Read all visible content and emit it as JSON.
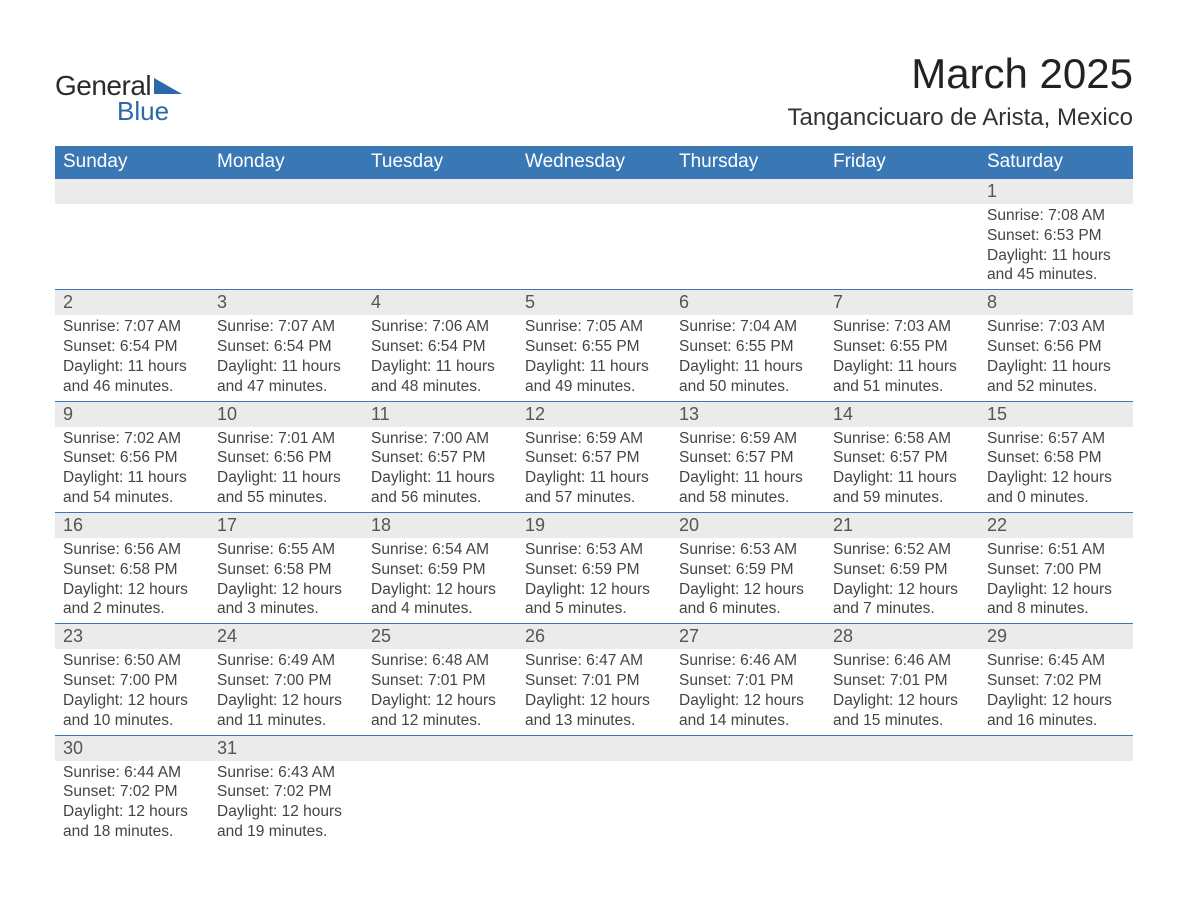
{
  "brand": {
    "name_part1": "General",
    "name_part2": "Blue",
    "text_color_dark": "#2b2b2b",
    "text_color_blue": "#2a6aa8",
    "triangle_color": "#2a6aa8"
  },
  "title": {
    "month": "March 2025",
    "location": "Tangancicuaro de Arista, Mexico",
    "month_fontsize": 42,
    "location_fontsize": 24
  },
  "colors": {
    "header_bg": "#3a78b5",
    "header_text": "#ffffff",
    "daynum_bg": "#ebebeb",
    "row_divider": "#3a78b5",
    "body_text": "#444444",
    "page_bg": "#ffffff"
  },
  "weekdays": [
    "Sunday",
    "Monday",
    "Tuesday",
    "Wednesday",
    "Thursday",
    "Friday",
    "Saturday"
  ],
  "weeks": [
    [
      null,
      null,
      null,
      null,
      null,
      null,
      {
        "n": "1",
        "sunrise": "Sunrise: 7:08 AM",
        "sunset": "Sunset: 6:53 PM",
        "day1": "Daylight: 11 hours",
        "day2": "and 45 minutes."
      }
    ],
    [
      {
        "n": "2",
        "sunrise": "Sunrise: 7:07 AM",
        "sunset": "Sunset: 6:54 PM",
        "day1": "Daylight: 11 hours",
        "day2": "and 46 minutes."
      },
      {
        "n": "3",
        "sunrise": "Sunrise: 7:07 AM",
        "sunset": "Sunset: 6:54 PM",
        "day1": "Daylight: 11 hours",
        "day2": "and 47 minutes."
      },
      {
        "n": "4",
        "sunrise": "Sunrise: 7:06 AM",
        "sunset": "Sunset: 6:54 PM",
        "day1": "Daylight: 11 hours",
        "day2": "and 48 minutes."
      },
      {
        "n": "5",
        "sunrise": "Sunrise: 7:05 AM",
        "sunset": "Sunset: 6:55 PM",
        "day1": "Daylight: 11 hours",
        "day2": "and 49 minutes."
      },
      {
        "n": "6",
        "sunrise": "Sunrise: 7:04 AM",
        "sunset": "Sunset: 6:55 PM",
        "day1": "Daylight: 11 hours",
        "day2": "and 50 minutes."
      },
      {
        "n": "7",
        "sunrise": "Sunrise: 7:03 AM",
        "sunset": "Sunset: 6:55 PM",
        "day1": "Daylight: 11 hours",
        "day2": "and 51 minutes."
      },
      {
        "n": "8",
        "sunrise": "Sunrise: 7:03 AM",
        "sunset": "Sunset: 6:56 PM",
        "day1": "Daylight: 11 hours",
        "day2": "and 52 minutes."
      }
    ],
    [
      {
        "n": "9",
        "sunrise": "Sunrise: 7:02 AM",
        "sunset": "Sunset: 6:56 PM",
        "day1": "Daylight: 11 hours",
        "day2": "and 54 minutes."
      },
      {
        "n": "10",
        "sunrise": "Sunrise: 7:01 AM",
        "sunset": "Sunset: 6:56 PM",
        "day1": "Daylight: 11 hours",
        "day2": "and 55 minutes."
      },
      {
        "n": "11",
        "sunrise": "Sunrise: 7:00 AM",
        "sunset": "Sunset: 6:57 PM",
        "day1": "Daylight: 11 hours",
        "day2": "and 56 minutes."
      },
      {
        "n": "12",
        "sunrise": "Sunrise: 6:59 AM",
        "sunset": "Sunset: 6:57 PM",
        "day1": "Daylight: 11 hours",
        "day2": "and 57 minutes."
      },
      {
        "n": "13",
        "sunrise": "Sunrise: 6:59 AM",
        "sunset": "Sunset: 6:57 PM",
        "day1": "Daylight: 11 hours",
        "day2": "and 58 minutes."
      },
      {
        "n": "14",
        "sunrise": "Sunrise: 6:58 AM",
        "sunset": "Sunset: 6:57 PM",
        "day1": "Daylight: 11 hours",
        "day2": "and 59 minutes."
      },
      {
        "n": "15",
        "sunrise": "Sunrise: 6:57 AM",
        "sunset": "Sunset: 6:58 PM",
        "day1": "Daylight: 12 hours",
        "day2": "and 0 minutes."
      }
    ],
    [
      {
        "n": "16",
        "sunrise": "Sunrise: 6:56 AM",
        "sunset": "Sunset: 6:58 PM",
        "day1": "Daylight: 12 hours",
        "day2": "and 2 minutes."
      },
      {
        "n": "17",
        "sunrise": "Sunrise: 6:55 AM",
        "sunset": "Sunset: 6:58 PM",
        "day1": "Daylight: 12 hours",
        "day2": "and 3 minutes."
      },
      {
        "n": "18",
        "sunrise": "Sunrise: 6:54 AM",
        "sunset": "Sunset: 6:59 PM",
        "day1": "Daylight: 12 hours",
        "day2": "and 4 minutes."
      },
      {
        "n": "19",
        "sunrise": "Sunrise: 6:53 AM",
        "sunset": "Sunset: 6:59 PM",
        "day1": "Daylight: 12 hours",
        "day2": "and 5 minutes."
      },
      {
        "n": "20",
        "sunrise": "Sunrise: 6:53 AM",
        "sunset": "Sunset: 6:59 PM",
        "day1": "Daylight: 12 hours",
        "day2": "and 6 minutes."
      },
      {
        "n": "21",
        "sunrise": "Sunrise: 6:52 AM",
        "sunset": "Sunset: 6:59 PM",
        "day1": "Daylight: 12 hours",
        "day2": "and 7 minutes."
      },
      {
        "n": "22",
        "sunrise": "Sunrise: 6:51 AM",
        "sunset": "Sunset: 7:00 PM",
        "day1": "Daylight: 12 hours",
        "day2": "and 8 minutes."
      }
    ],
    [
      {
        "n": "23",
        "sunrise": "Sunrise: 6:50 AM",
        "sunset": "Sunset: 7:00 PM",
        "day1": "Daylight: 12 hours",
        "day2": "and 10 minutes."
      },
      {
        "n": "24",
        "sunrise": "Sunrise: 6:49 AM",
        "sunset": "Sunset: 7:00 PM",
        "day1": "Daylight: 12 hours",
        "day2": "and 11 minutes."
      },
      {
        "n": "25",
        "sunrise": "Sunrise: 6:48 AM",
        "sunset": "Sunset: 7:01 PM",
        "day1": "Daylight: 12 hours",
        "day2": "and 12 minutes."
      },
      {
        "n": "26",
        "sunrise": "Sunrise: 6:47 AM",
        "sunset": "Sunset: 7:01 PM",
        "day1": "Daylight: 12 hours",
        "day2": "and 13 minutes."
      },
      {
        "n": "27",
        "sunrise": "Sunrise: 6:46 AM",
        "sunset": "Sunset: 7:01 PM",
        "day1": "Daylight: 12 hours",
        "day2": "and 14 minutes."
      },
      {
        "n": "28",
        "sunrise": "Sunrise: 6:46 AM",
        "sunset": "Sunset: 7:01 PM",
        "day1": "Daylight: 12 hours",
        "day2": "and 15 minutes."
      },
      {
        "n": "29",
        "sunrise": "Sunrise: 6:45 AM",
        "sunset": "Sunset: 7:02 PM",
        "day1": "Daylight: 12 hours",
        "day2": "and 16 minutes."
      }
    ],
    [
      {
        "n": "30",
        "sunrise": "Sunrise: 6:44 AM",
        "sunset": "Sunset: 7:02 PM",
        "day1": "Daylight: 12 hours",
        "day2": "and 18 minutes."
      },
      {
        "n": "31",
        "sunrise": "Sunrise: 6:43 AM",
        "sunset": "Sunset: 7:02 PM",
        "day1": "Daylight: 12 hours",
        "day2": "and 19 minutes."
      },
      null,
      null,
      null,
      null,
      null
    ]
  ]
}
